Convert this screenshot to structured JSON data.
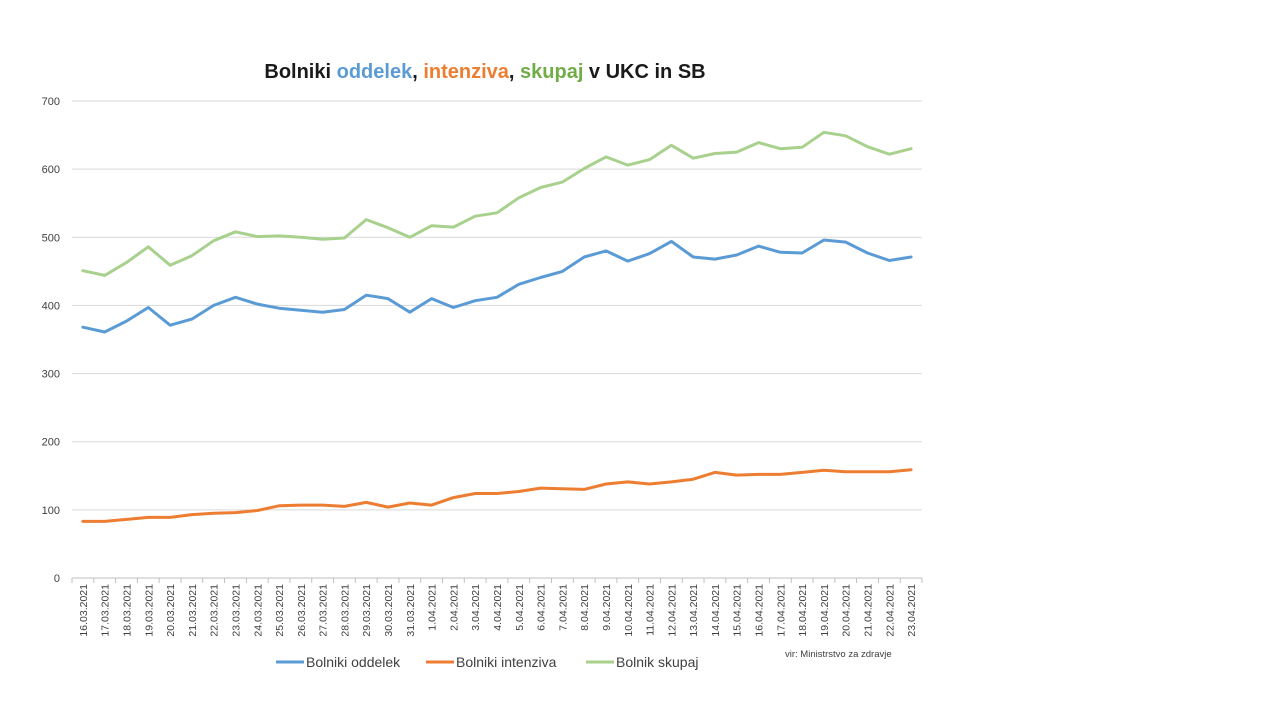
{
  "chart_data": {
    "type": "line",
    "title_parts": [
      {
        "text": "Bolniki ",
        "color": "#1a1a1a"
      },
      {
        "text": "oddelek",
        "color": "#5b9bd5"
      },
      {
        "text": ", ",
        "color": "#1a1a1a"
      },
      {
        "text": "intenziva",
        "color": "#ed7d31"
      },
      {
        "text": ", ",
        "color": "#1a1a1a"
      },
      {
        "text": "skupaj",
        "color": "#70ad47"
      },
      {
        "text": " v UKC in SB",
        "color": "#1a1a1a"
      }
    ],
    "source": "vir: Ministrstvo za zdravje",
    "ylim": [
      0,
      700
    ],
    "yticks": [
      0,
      100,
      200,
      300,
      400,
      500,
      600,
      700
    ],
    "grid": true,
    "legend_position": "bottom",
    "categories": [
      "16.03.2021",
      "17.03.2021",
      "18.03.2021",
      "19.03.2021",
      "20.03.2021",
      "21.03.2021",
      "22.03.2021",
      "23.03.2021",
      "24.03.2021",
      "25.03.2021",
      "26.03.2021",
      "27.03.2021",
      "28.03.2021",
      "29.03.2021",
      "30.03.2021",
      "31.03.2021",
      "1.04.2021",
      "2.04.2021",
      "3.04.2021",
      "4.04.2021",
      "5.04.2021",
      "6.04.2021",
      "7.04.2021",
      "8.04.2021",
      "9.04.2021",
      "10.04.2021",
      "11.04.2021",
      "12.04.2021",
      "13.04.2021",
      "14.04.2021",
      "15.04.2021",
      "16.04.2021",
      "17.04.2021",
      "18.04.2021",
      "19.04.2021",
      "20.04.2021",
      "21.04.2021",
      "22.04.2021",
      "23.04.2021"
    ],
    "series": [
      {
        "name": "Bolniki oddelek",
        "color": "#5b9bd5",
        "values": [
          368,
          361,
          377,
          397,
          371,
          380,
          400,
          412,
          402,
          396,
          393,
          390,
          394,
          415,
          410,
          390,
          410,
          397,
          407,
          412,
          431,
          441,
          450,
          471,
          480,
          465,
          476,
          494,
          471,
          468,
          474,
          487,
          478,
          477,
          496,
          493,
          477,
          466,
          471
        ]
      },
      {
        "name": "Bolniki intenziva",
        "color": "#ed7d31",
        "values": [
          83,
          83,
          86,
          89,
          89,
          93,
          95,
          96,
          99,
          106,
          107,
          107,
          105,
          111,
          104,
          110,
          107,
          118,
          124,
          124,
          127,
          132,
          131,
          130,
          138,
          141,
          138,
          141,
          145,
          155,
          151,
          152,
          152,
          155,
          158,
          156,
          156,
          156,
          159
        ]
      },
      {
        "name": "Bolnik skupaj",
        "color": "#a9d18e",
        "values": [
          451,
          444,
          463,
          486,
          459,
          473,
          495,
          508,
          501,
          502,
          500,
          497,
          499,
          526,
          514,
          500,
          517,
          515,
          531,
          536,
          558,
          573,
          581,
          601,
          618,
          606,
          614,
          635,
          616,
          623,
          625,
          639,
          630,
          632,
          654,
          649,
          633,
          622,
          630
        ]
      }
    ]
  }
}
